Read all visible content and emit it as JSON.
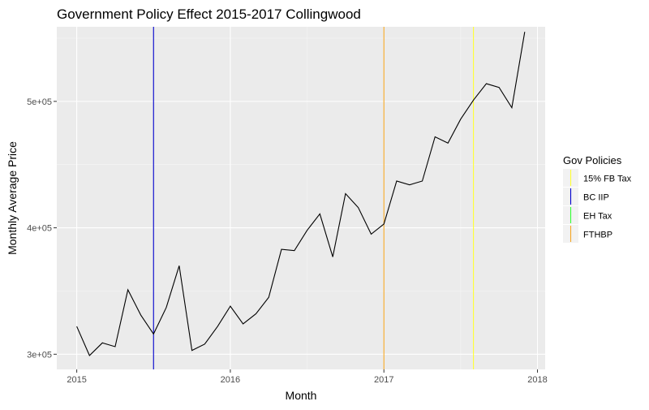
{
  "chart_data": {
    "type": "line",
    "title": "Government Policy Effect 2015-2017 Collingwood",
    "xlabel": "Month",
    "ylabel": "Monthly Average Price",
    "xlim": [
      2014.87,
      2018.05
    ],
    "ylim": [
      288000,
      559000
    ],
    "x_ticks": [
      {
        "value": 2015,
        "label": "2015"
      },
      {
        "value": 2016,
        "label": "2016"
      },
      {
        "value": 2017,
        "label": "2017"
      },
      {
        "value": 2018,
        "label": "2018"
      }
    ],
    "y_ticks": [
      {
        "value": 300000,
        "label": "3e+05"
      },
      {
        "value": 400000,
        "label": "4e+05"
      },
      {
        "value": 500000,
        "label": "5e+05"
      }
    ],
    "grid": true,
    "series": [
      {
        "color": "#000000",
        "x": [
          2015.0,
          2015.083,
          2015.167,
          2015.25,
          2015.333,
          2015.417,
          2015.5,
          2015.583,
          2015.667,
          2015.75,
          2015.833,
          2015.917,
          2016.0,
          2016.083,
          2016.167,
          2016.25,
          2016.333,
          2016.417,
          2016.5,
          2016.583,
          2016.667,
          2016.75,
          2016.833,
          2016.917,
          2017.0,
          2017.083,
          2017.167,
          2017.25,
          2017.333,
          2017.417,
          2017.5,
          2017.583,
          2017.667,
          2017.75,
          2017.833,
          2017.917
        ],
        "y": [
          322000,
          299000,
          309000,
          306000,
          351000,
          331000,
          316000,
          337000,
          370000,
          303000,
          308000,
          322000,
          338000,
          324000,
          332000,
          345000,
          383000,
          382000,
          398000,
          411000,
          377000,
          427000,
          416000,
          395000,
          403000,
          437000,
          434000,
          437000,
          472000,
          467000,
          486000,
          501000,
          514000,
          511000,
          495000,
          555000
        ]
      }
    ],
    "vlines": [
      {
        "name": "BC IIP",
        "x": 2015.5,
        "color": "#0000cc"
      },
      {
        "name": "FTHBP",
        "x": 2017.0,
        "color": "#f5a623"
      },
      {
        "name": "15% FB Tax",
        "x": 2017.583,
        "color": "#ffff33"
      }
    ],
    "legend": {
      "title": "Gov Policies",
      "position": "right",
      "items": [
        {
          "label": "15% FB Tax",
          "color": "#ffff33"
        },
        {
          "label": "BC IIP",
          "color": "#0000cc"
        },
        {
          "label": "EH Tax",
          "color": "#33ff33"
        },
        {
          "label": "FTHBP",
          "color": "#f5a623"
        }
      ]
    }
  }
}
